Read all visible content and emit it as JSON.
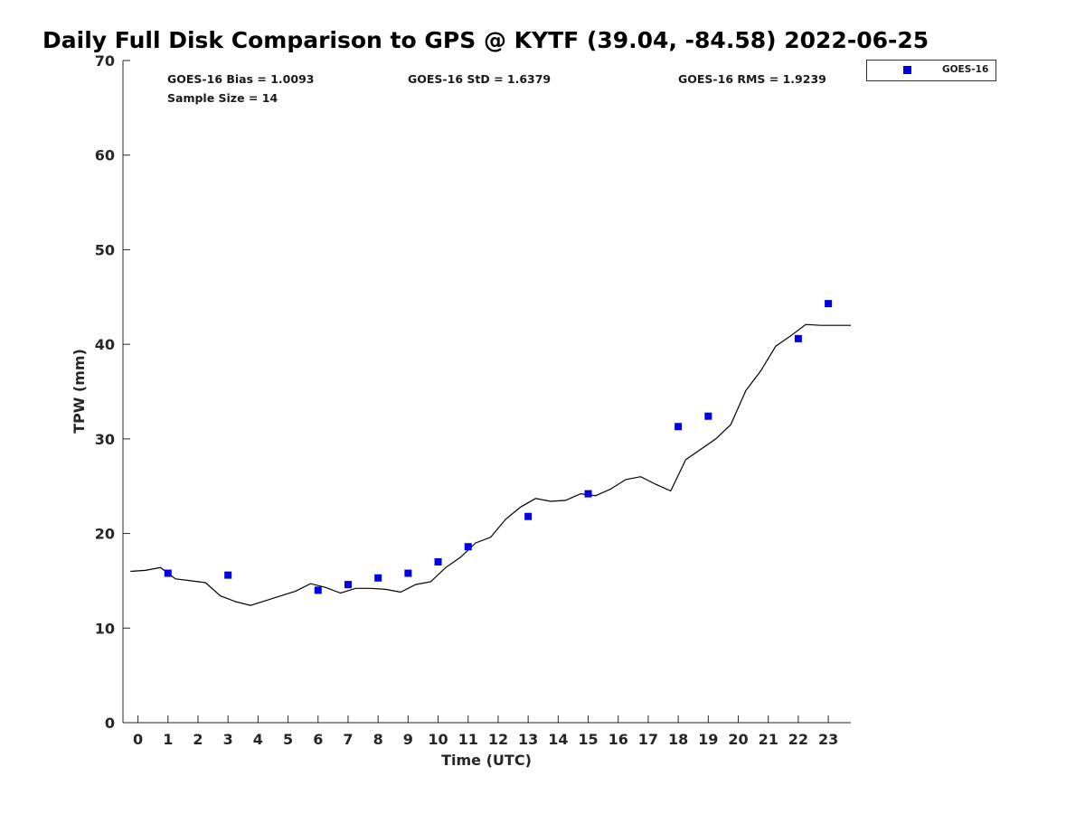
{
  "title": "Daily Full Disk Comparison to GPS @ KYTF (39.04, -84.58) 2022-06-25",
  "stats": {
    "bias": "GOES-16 Bias = 1.0093",
    "std": "GOES-16 StD = 1.6379",
    "rms": "GOES-16 RMS = 1.9239",
    "sample": "Sample Size = 14"
  },
  "legend": {
    "label": "GOES-16",
    "marker": "blue-square"
  },
  "chart_data": {
    "type": "scatter",
    "title": "Daily Full Disk Comparison to GPS @ KYTF (39.04, -84.58) 2022-06-25",
    "xlabel": "Time (UTC)",
    "ylabel": "TPW (mm)",
    "xlim": [
      -0.5,
      23.75
    ],
    "ylim": [
      0,
      70
    ],
    "x_ticks": [
      0,
      1,
      2,
      3,
      4,
      5,
      6,
      7,
      8,
      9,
      10,
      11,
      12,
      13,
      14,
      15,
      16,
      17,
      18,
      19,
      20,
      21,
      22,
      23
    ],
    "y_ticks": [
      0,
      10,
      20,
      30,
      40,
      50,
      60,
      70
    ],
    "grid": false,
    "legend_position": "top-right",
    "colors": {
      "goes": "#0000e6",
      "gps_line": "#000000"
    },
    "series": [
      {
        "name": "GOES-16",
        "type": "scatter",
        "x": [
          1,
          3,
          6,
          7,
          8,
          9,
          10,
          11,
          13,
          15,
          18,
          19,
          22,
          23
        ],
        "y": [
          15.8,
          15.6,
          14.0,
          14.6,
          15.3,
          15.8,
          17.0,
          18.6,
          21.8,
          24.2,
          31.3,
          32.4,
          40.6,
          44.3
        ]
      },
      {
        "type": "line",
        "x": [
          -0.25,
          0.25,
          0.75,
          1.0,
          1.25,
          1.75,
          2.25,
          2.75,
          3.25,
          3.75,
          4.25,
          4.75,
          5.25,
          5.75,
          6.25,
          6.75,
          7.25,
          7.75,
          8.25,
          8.75,
          9.25,
          9.75,
          10.25,
          10.75,
          11.25,
          11.75,
          12.25,
          12.75,
          13.25,
          13.75,
          14.25,
          14.75,
          15.25,
          15.75,
          16.25,
          16.75,
          17.25,
          17.75,
          18.25,
          18.75,
          19.25,
          19.75,
          20.25,
          20.75,
          21.25,
          21.75,
          22.25,
          22.75,
          23.25,
          23.75
        ],
        "y": [
          16.0,
          16.1,
          16.4,
          15.8,
          15.2,
          15.0,
          14.8,
          13.4,
          12.8,
          12.4,
          12.9,
          13.4,
          13.9,
          14.7,
          14.3,
          13.7,
          14.2,
          14.2,
          14.1,
          13.8,
          14.6,
          14.9,
          16.4,
          17.5,
          19.0,
          19.6,
          21.5,
          22.8,
          23.7,
          23.4,
          23.5,
          24.2,
          24.0,
          24.7,
          25.7,
          26.0,
          25.2,
          24.5,
          27.8,
          28.9,
          30.0,
          31.5,
          35.1,
          37.2,
          39.8,
          40.9,
          42.1,
          42.0,
          42.0,
          42.0
        ]
      }
    ]
  }
}
